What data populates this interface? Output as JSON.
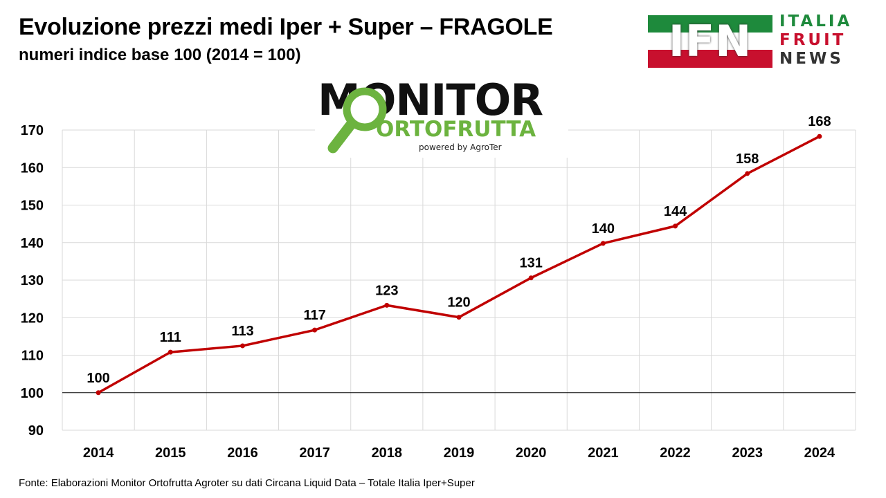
{
  "header": {
    "title": "Evoluzione prezzi medi Iper + Super – FRAGOLE",
    "subtitle": "numeri indice base 100 (2014  = 100)"
  },
  "logos": {
    "ifn": {
      "letters": "IFN",
      "line1": "ITALIA",
      "line2": "FRUIT",
      "line3": "NEWS"
    },
    "monitor": {
      "word": "MONITOR",
      "sub": "ORTOFRUTTA",
      "powered": "powered by AgroTer"
    }
  },
  "footer": {
    "source": "Fonte: Elaborazioni Monitor Ortofrutta Agroter su dati Circana Liquid Data – Totale Italia Iper+Super"
  },
  "chart_data": {
    "type": "line",
    "categories": [
      "2014",
      "2015",
      "2016",
      "2017",
      "2018",
      "2019",
      "2020",
      "2021",
      "2022",
      "2023",
      "2024"
    ],
    "series": [
      {
        "values": [
          100,
          110.8,
          112.5,
          116.7,
          123.3,
          120.1,
          130.6,
          139.8,
          144.4,
          158.4,
          168.3
        ]
      }
    ],
    "data_labels": [
      "100",
      "111",
      "113",
      "117",
      "123",
      "120",
      "131",
      "140",
      "144",
      "158",
      "168"
    ],
    "ylim": [
      90,
      170
    ],
    "yticks": [
      90,
      100,
      110,
      120,
      130,
      140,
      150,
      160,
      170
    ],
    "baseline": 100,
    "grid": true,
    "legend": "none",
    "line_color": "#c00000",
    "grid_color": "#d9d9d9"
  }
}
